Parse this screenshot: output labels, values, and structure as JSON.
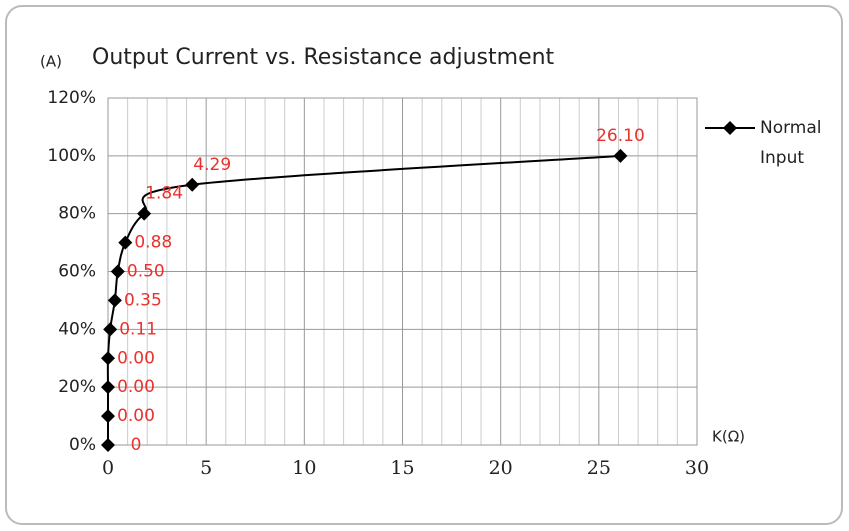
{
  "chart_data": {
    "type": "line",
    "title": "Output Current vs. Resistance adjustment",
    "y_label": "(A)",
    "x_label": "K(Ω)",
    "x": [
      0,
      0,
      0,
      0,
      0.11,
      0.35,
      0.5,
      0.88,
      1.84,
      4.29,
      26.1
    ],
    "series": [
      {
        "name": "Normal Input",
        "color": "#000000",
        "values": [
          0,
          10,
          20,
          30,
          40,
          50,
          60,
          70,
          80,
          90,
          100
        ],
        "value_labels": [
          "0",
          "0.00",
          "0.00",
          "0.00",
          "0.11",
          "0.35",
          "0.50",
          "0.88",
          "1.84",
          "4.29",
          "26.10"
        ]
      }
    ],
    "label_color": "#e8322e",
    "xlim": [
      0,
      30
    ],
    "xticks": [
      0,
      5,
      10,
      15,
      20,
      25,
      30
    ],
    "ylim": [
      0,
      120
    ],
    "yticks": [
      {
        "value": 0,
        "label": "0%"
      },
      {
        "value": 20,
        "label": "20%"
      },
      {
        "value": 40,
        "label": "40%"
      },
      {
        "value": 60,
        "label": "60%"
      },
      {
        "value": 80,
        "label": "80%"
      },
      {
        "value": 100,
        "label": "100%"
      },
      {
        "value": 120,
        "label": "120%"
      }
    ],
    "grid": true,
    "legend": "right"
  }
}
